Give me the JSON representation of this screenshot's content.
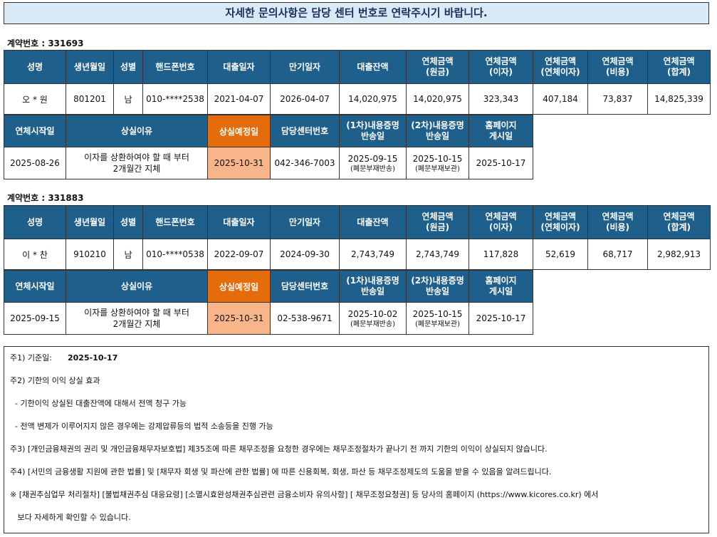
{
  "banner": "자세한 문의사항은 담당 센터 번호로 연락주시기 바랍니다.",
  "headers_row1": [
    "성명",
    "생년월일",
    "성별",
    "핸드폰번호",
    "대출일자",
    "만기일자",
    "대출잔액",
    "연체금액\n(원금)",
    "연체금액\n(이자)",
    "연체금액\n(연체이자)",
    "연체금액\n(비용)",
    "연체금액\n(합계)"
  ],
  "headers_row2": [
    "연체시작일",
    "상실이유",
    "상실예정일",
    "담당센터번호",
    "(1차)내용증명\n반송일",
    "(2차)내용증명\n반송일",
    "홈페이지\n게시일"
  ],
  "contracts": [
    {
      "label": "계약번호 : 331693",
      "name": "오 * 원",
      "birth": "801201",
      "gender": "남",
      "phone": "010-****2538",
      "loan_date": "2021-04-07",
      "maturity": "2026-04-07",
      "balance": "14,020,975",
      "od_principal": "14,020,975",
      "od_interest": "323,343",
      "od_late": "407,184",
      "od_cost": "73,837",
      "od_total": "14,825,339",
      "od_start": "2025-08-26",
      "loss_reason": "이자를 상환하여야 할 때 부터\n2개월간 지체",
      "loss_date": "2025-10-31",
      "center_phone": "042-346-7003",
      "cert1_date": "2025-09-15",
      "cert1_note": "(폐문부재반송)",
      "cert2_date": "2025-10-15",
      "cert2_note": "(폐문부재보관)",
      "homepage_date": "2025-10-17"
    },
    {
      "label": "계약번호 : 331883",
      "name": "이 * 찬",
      "birth": "910210",
      "gender": "남",
      "phone": "010-****0538",
      "loan_date": "2022-09-07",
      "maturity": "2024-09-30",
      "balance": "2,743,749",
      "od_principal": "2,743,749",
      "od_interest": "117,828",
      "od_late": "52,619",
      "od_cost": "68,717",
      "od_total": "2,982,913",
      "od_start": "2025-09-15",
      "loss_reason": "이자를 상환하여야 할 때 부터\n2개월간 지체",
      "loss_date": "2025-10-31",
      "center_phone": "02-538-9671",
      "cert1_date": "2025-10-02",
      "cert1_note": "(폐문부재반송)",
      "cert2_date": "2025-10-15",
      "cert2_note": "(폐문부재보관)",
      "homepage_date": "2025-10-17"
    }
  ],
  "notes": {
    "n1_label": "주1) 기준일:",
    "n1_date": "2025-10-17",
    "n2": "주2) 기한의 이익 상실 효과",
    "n2a": "  - 기한이익 상실된 대출잔액에 대해서 전액 청구 가능",
    "n2b": "  - 전액 변제가 이루어지지 않은 경우에는 강제압류등의 법적 소송등을 진행 가능",
    "n3": "주3) [개인금융채권의 권리 및 개인금융채무자보호법] 제35조에 따른 채무조정을 요청한 경우에는 채무조정절차가 끝나기 전 까지 기한의 이익이 상실되지 않습니다.",
    "n4": "주4) [서민의 금융생활 지원에 관한 법률] 및 [채무자 회생 및 파산에 관한 법률] 에 따른 신용회복, 회생, 파산 등 채무조정제도의 도움을 받을 수 있음을 알려드립니다.",
    "n5": "※ [채권추심업무 처리절차] [불법채권추심 대응요령] [소멸시효완성채권추심관련 금융소비자 유의사항] [ 채무조정요청권] 등 당사의 홈페이지 (https://www.kicores.co.kr) 에서",
    "n5b": "   보다 자세하게 확인할 수 있습니다."
  }
}
